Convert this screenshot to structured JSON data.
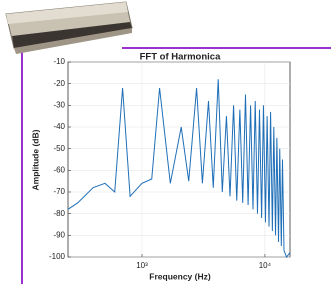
{
  "chart_data": {
    "type": "line",
    "title": "FFT of Harmonica",
    "xlabel": "Frequency (Hz)",
    "ylabel": "Amplitude (dB)",
    "x": [
      250,
      300,
      400,
      500,
      600,
      695,
      800,
      1000,
      1200,
      1390,
      1700,
      2085,
      2400,
      2780,
      3100,
      3475,
      3800,
      4170,
      4500,
      4865,
      5200,
      5560,
      5900,
      6255,
      6600,
      6950,
      7300,
      7645,
      8000,
      8340,
      8700,
      9035,
      9400,
      9730,
      10100,
      10425,
      10800,
      11120,
      11500,
      11815,
      12200,
      12510,
      12900,
      13205,
      13600,
      13900,
      14300,
      15000,
      16000
    ],
    "series": [
      {
        "color": "#1f6fb8",
        "values": [
          -78,
          -75,
          -68,
          -66,
          -70,
          -22,
          -72,
          -66,
          -64,
          -22,
          -66,
          -40,
          -65,
          -22,
          -66,
          -28,
          -68,
          -18,
          -70,
          -35,
          -72,
          -30,
          -74,
          -32,
          -75,
          -25,
          -76,
          -30,
          -78,
          -28,
          -80,
          -32,
          -82,
          -30,
          -84,
          -35,
          -86,
          -33,
          -88,
          -40,
          -90,
          -45,
          -93,
          -50,
          -95,
          -55,
          -97,
          -100,
          -98
        ]
      }
    ],
    "xlim": [
      250,
      16000
    ],
    "xscale": "log",
    "xticks": [
      {
        "value": 1000,
        "label": "10³"
      },
      {
        "value": 10000,
        "label": "10⁴"
      }
    ],
    "ylim": [
      -100,
      -10
    ],
    "yticks": [
      -10,
      -20,
      -30,
      -40,
      -50,
      -60,
      -70,
      -80,
      -90,
      -100
    ],
    "grid": true
  }
}
